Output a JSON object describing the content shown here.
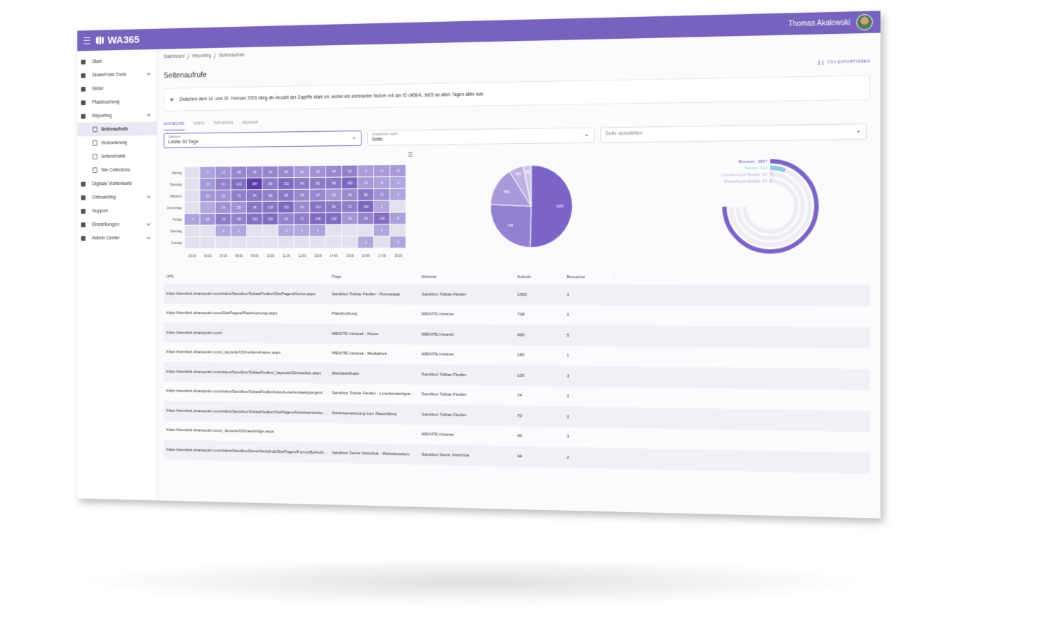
{
  "header": {
    "logo": "WA365",
    "user": "Thomas Akalowski"
  },
  "nav": [
    {
      "label": "Start"
    },
    {
      "label": "SharePoint Tools",
      "expandable": true
    },
    {
      "label": "Slider"
    },
    {
      "label": "Platzbuchung"
    },
    {
      "label": "Reporting",
      "expandable": true,
      "expanded": true,
      "children": [
        {
          "label": "Seitenaufrufe",
          "active": true
        },
        {
          "label": "Versionierung"
        },
        {
          "label": "Seiteninhalte"
        },
        {
          "label": "Site Collections"
        }
      ]
    },
    {
      "label": "Digitale Visitenkarte"
    },
    {
      "label": "Onboarding",
      "expandable": true
    },
    {
      "label": "Support"
    },
    {
      "label": "Einstellungen",
      "expandable": true
    },
    {
      "label": "Admin Center",
      "expandable": true
    }
  ],
  "breadcrumb": [
    "Dashboard",
    "Reporting",
    "Seitenaufrufe"
  ],
  "page_title": "Seitenaufrufe",
  "export_button": "CSV EXPORTIEREN",
  "insight": "Zwischen dem 14. und 20. Februar 2026 stieg die Anzahl der Zugriffe stark an, wobei ein konstanter Nutzer mit der ID d45b4...fa03 an allen Tagen aktiv war.",
  "tabs": [
    "DASHBOARD",
    "VISITS",
    "TOP SEITEN",
    "HEATMAP"
  ],
  "active_tab": 0,
  "filters": [
    {
      "label": "Zeitraum",
      "value": "Letzte 30 Tage"
    },
    {
      "label": "Gruppieren nach",
      "value": "Seite"
    },
    {
      "placeholder": "Seite auswählen"
    }
  ],
  "chart_data": [
    {
      "type": "heatmap",
      "categories": [
        "Montag",
        "Dienstag",
        "Mittwoch",
        "Donnerstag",
        "Freitag",
        "Samstag",
        "Sonntag"
      ],
      "x": [
        "05:00",
        "06:00",
        "07:00",
        "08:00",
        "09:00",
        "10:00",
        "11:00",
        "12:00",
        "13:00",
        "14:00",
        "15:00",
        "16:00",
        "17:00",
        "18:00"
      ],
      "values": [
        [
          null,
          4,
          22,
          48,
          46,
          52,
          43,
          11,
          24,
          44,
          61,
          9,
          11,
          11
        ],
        [
          null,
          15,
          61,
          122,
          387,
          85,
          151,
          84,
          85,
          88,
          153,
          13,
          5,
          2
        ],
        [
          null,
          16,
          25,
          71,
          94,
          68,
          86,
          45,
          47,
          15,
          40,
          82,
          21,
          2
        ],
        [
          null,
          1,
          24,
          25,
          96,
          109,
          152,
          42,
          110,
          89,
          72,
          160,
          2,
          null
        ],
        [
          4,
          16,
          76,
          60,
          120,
          140,
          56,
          72,
          144,
          132,
          20,
          54,
          125,
          6
        ],
        [
          null,
          null,
          2,
          2,
          null,
          null,
          2,
          1,
          4,
          null,
          null,
          null,
          2,
          null
        ],
        [
          null,
          null,
          null,
          null,
          null,
          null,
          null,
          null,
          null,
          null,
          null,
          2,
          null,
          2
        ]
      ],
      "color": "#6a52b8"
    },
    {
      "type": "pie",
      "values": [
        1583,
        798,
        480,
        180,
        100
      ],
      "colors": [
        "#7b64c6",
        "#9380d0",
        "#a999da",
        "#bdb1e3",
        "#d0c8ec"
      ]
    },
    {
      "type": "radialbar",
      "labels": [
        "Browser: 3897",
        "Teams: 322",
        "Connections Mobile: 62",
        "SharePoint Mobile: 21"
      ],
      "values": [
        3897,
        322,
        62,
        21
      ],
      "colors": [
        "#7b64c6",
        "#8ecbe6",
        "#d6d2e8",
        "#b3a7e0"
      ]
    }
  ],
  "table": {
    "columns": [
      "URL",
      "Page",
      "Website",
      "Aufrufe",
      "Besucher"
    ],
    "rows": [
      [
        "https://weniteit.sharepoint.com/sites/SandboxTobiasFiedler/SitePages/Home.aspx",
        "Sandbox Tobias Fiedler - Homepage",
        "Sandbox Tobias Fiedler",
        1583,
        3
      ],
      [
        "https://weniteit.sharepoint.com/SitePages/Platzbuchung.aspx",
        "Platzbuchung",
        "WENITE Intranet",
        798,
        2
      ],
      [
        "https://weniteit.sharepoint.com/",
        "WENITE Intranet - Home",
        "WENITE Intranet",
        480,
        5
      ],
      [
        "https://weniteit.sharepoint.com/_layouts/15/modernFrame.aspx",
        "WENITE Intranet - Mediathek",
        "WENITE Intranet",
        180,
        1
      ],
      [
        "https://weniteit.sharepoint.com/sites/SandboxTobiasFiedler/_layouts/15/viewlsts.aspx",
        "Websiteinhalte",
        "Sandbox Tobias Fiedler",
        100,
        3
      ],
      [
        "https://weniteit.sharepoint.com/sites/SandboxTobiasFiedler/Lists/Lesebestaetigungen/...",
        "Sandbox Tobias Fiedler - Lesebestaetigun...",
        "Sandbox Tobias Fiedler",
        74,
        2
      ],
      [
        "https://weniteit.sharepoint.com/sites/SandboxTobiasFiedler/SitePages/Arbeitsanweisu...",
        "Arbeitsanweisung zum Raumklima",
        "Sandbox Tobias Fiedler",
        70,
        2
      ],
      [
        "https://weniteit.sharepoint.com/_layouts/15/meebridge.aspx",
        null,
        "WENITE Intranet",
        48,
        3
      ],
      [
        "https://weniteit.sharepoint.com/sites/SandboxDenisVishchuk/SitePages/Forms/ByAuth...",
        "Sandbox Denis Vishchuk - Websiteseiten",
        "Sandbox Denis Vishchuk",
        44,
        2
      ]
    ]
  }
}
